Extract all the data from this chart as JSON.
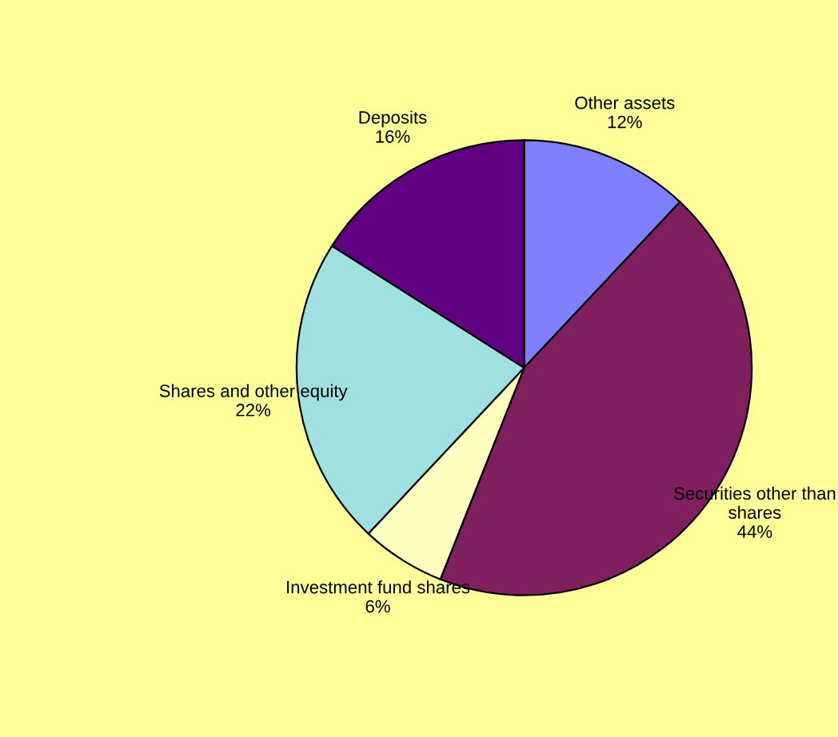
{
  "chart_data": {
    "type": "pie",
    "categories": [
      "Other assets",
      "Securities other than shares",
      "Investment fund shares",
      "Shares and other equity",
      "Deposits"
    ],
    "values": [
      12,
      44,
      6,
      22,
      16
    ],
    "value_labels": [
      "12%",
      "44%",
      "6%",
      "22%",
      "16%"
    ],
    "colors": [
      "#8080ff",
      "#7f1f5f",
      "#ffffc0",
      "#a0e0e0",
      "#600080"
    ],
    "legend": false
  }
}
